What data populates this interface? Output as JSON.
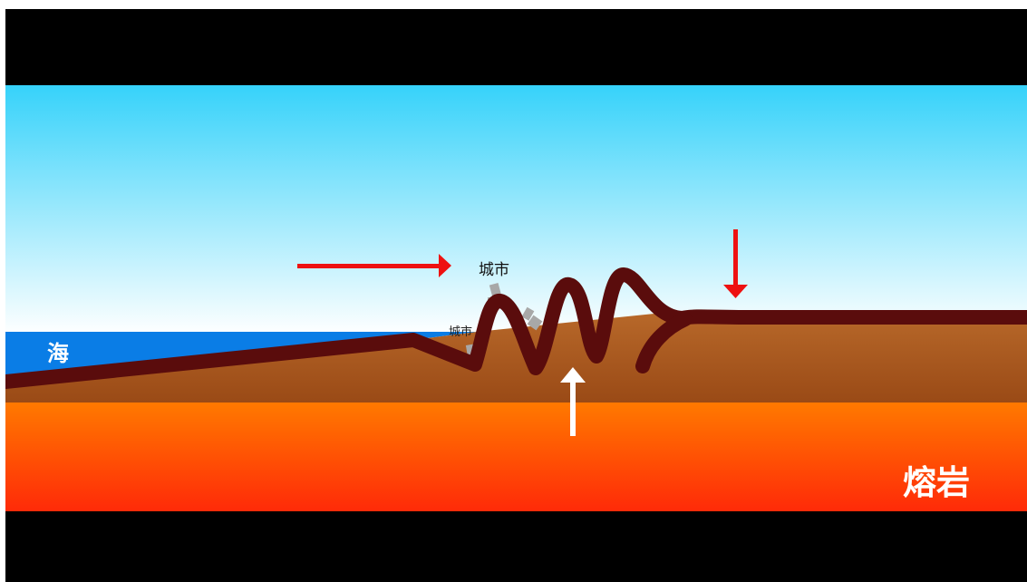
{
  "labels": {
    "sea": "海",
    "city_upper": "城市",
    "city_lower": "城市",
    "magma": "熔岩"
  },
  "colors": {
    "letterbox": "#000000",
    "sky_top": "#36d2fa",
    "sky_bottom": "#ffffff",
    "sea": "#0a7de6",
    "crust_top": "#b8692a",
    "crust_bottom": "#9a4a16",
    "magma_top": "#ff7a00",
    "magma_bottom": "#ff2a08",
    "plate_line": "#5a0c0c",
    "compression_arrow": "#ee1111",
    "uplift_arrow": "#ffffff",
    "buildings": "#a8a8a8"
  }
}
